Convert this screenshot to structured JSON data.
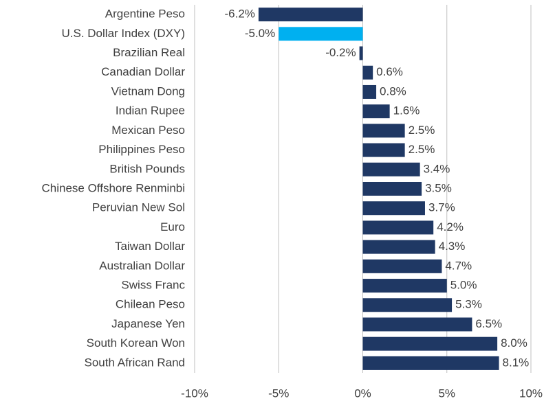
{
  "chart_data": {
    "type": "bar",
    "orientation": "horizontal",
    "categories": [
      "Argentine Peso",
      "U.S. Dollar Index (DXY)",
      "Brazilian Real",
      "Canadian Dollar",
      "Vietnam Dong",
      "Indian Rupee",
      "Mexican Peso",
      "Philippines Peso",
      "British Pounds",
      "Chinese Offshore Renminbi",
      "Peruvian New Sol",
      "Euro",
      "Taiwan Dollar",
      "Australian Dollar",
      "Swiss Franc",
      "Chilean Peso",
      "Japanese Yen",
      "South Korean Won",
      "South African Rand"
    ],
    "values": [
      -6.2,
      -5.0,
      -0.2,
      0.6,
      0.8,
      1.6,
      2.5,
      2.5,
      3.4,
      3.5,
      3.7,
      4.2,
      4.3,
      4.7,
      5.0,
      5.3,
      6.5,
      8.0,
      8.1
    ],
    "value_labels": [
      "-6.2%",
      "-5.0%",
      "-0.2%",
      "0.6%",
      "0.8%",
      "1.6%",
      "2.5%",
      "2.5%",
      "3.4%",
      "3.5%",
      "3.7%",
      "4.2%",
      "4.3%",
      "4.7%",
      "5.0%",
      "5.3%",
      "6.5%",
      "8.0%",
      "8.1%"
    ],
    "colors": [
      "#1f3864",
      "#00b0f0",
      "#1f3864",
      "#1f3864",
      "#1f3864",
      "#1f3864",
      "#1f3864",
      "#1f3864",
      "#1f3864",
      "#1f3864",
      "#1f3864",
      "#1f3864",
      "#1f3864",
      "#1f3864",
      "#1f3864",
      "#1f3864",
      "#1f3864",
      "#1f3864",
      "#1f3864"
    ],
    "xlim": [
      -10,
      10
    ],
    "xticks": [
      {
        "value": -10,
        "label": "-10%"
      },
      {
        "value": -5,
        "label": "-5%"
      },
      {
        "value": 0,
        "label": "0%"
      },
      {
        "value": 5,
        "label": "5%"
      },
      {
        "value": 10,
        "label": "10%"
      }
    ],
    "grid": true
  }
}
